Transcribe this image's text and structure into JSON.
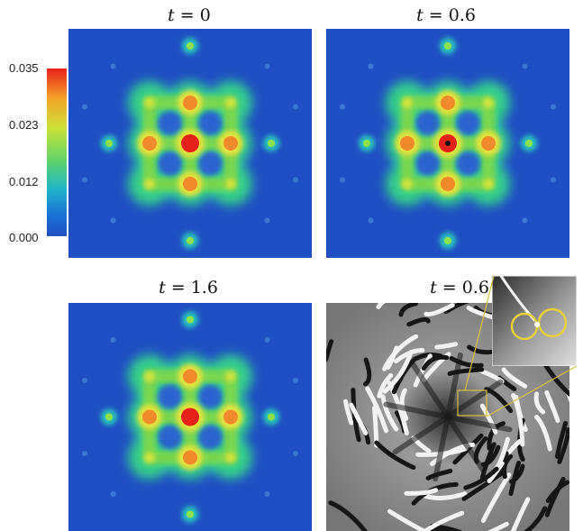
{
  "panels": [
    {
      "t_symbol": "t",
      "t_value": "0"
    },
    {
      "t_symbol": "t",
      "t_value": "0.6"
    },
    {
      "t_symbol": "t",
      "t_value": "1.6"
    },
    {
      "t_symbol": "t",
      "t_value": "0.6"
    }
  ],
  "colorbar": {
    "ticks": [
      "0.035",
      "0.023",
      "0.012",
      "0.000"
    ],
    "colors": [
      "#e8211a",
      "#f4a52a",
      "#c9e23a",
      "#5fd36a",
      "#1fb5c9",
      "#1a6fd6",
      "#1f4fc4"
    ]
  },
  "colors": {
    "background_blue": "#1f4fc4",
    "inset_highlight": "#e8d23a"
  }
}
